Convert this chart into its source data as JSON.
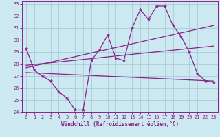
{
  "xlabel": "Windchill (Refroidissement éolien,°C)",
  "xlim": [
    -0.5,
    23.5
  ],
  "ylim": [
    24,
    33.2
  ],
  "yticks": [
    24,
    25,
    26,
    27,
    28,
    29,
    30,
    31,
    32,
    33
  ],
  "xticks": [
    0,
    1,
    2,
    3,
    4,
    5,
    6,
    7,
    8,
    9,
    10,
    11,
    12,
    13,
    14,
    15,
    16,
    17,
    18,
    19,
    20,
    21,
    22,
    23
  ],
  "bg_color": "#cce8f0",
  "grid_color": "#aaccd8",
  "line_color": "#882288",
  "series1_x": [
    0,
    1,
    2,
    3,
    4,
    5,
    6,
    7,
    8,
    9,
    10,
    11,
    12,
    13,
    14,
    15,
    16,
    17,
    18,
    19,
    20,
    21,
    22,
    23
  ],
  "series1_y": [
    29.3,
    27.5,
    27.0,
    26.6,
    25.7,
    25.2,
    24.2,
    24.2,
    28.3,
    29.2,
    30.4,
    28.5,
    28.3,
    31.0,
    32.5,
    31.7,
    32.8,
    32.8,
    31.2,
    30.3,
    29.0,
    27.2,
    26.6,
    26.5
  ],
  "series2_x": [
    0,
    23
  ],
  "series2_y": [
    27.3,
    26.6
  ],
  "series3_x": [
    0,
    23
  ],
  "series3_y": [
    27.7,
    31.2
  ],
  "series4_x": [
    0,
    23
  ],
  "series4_y": [
    27.9,
    29.5
  ],
  "label_fontsize": 5.0,
  "tick_fontsize": 5.0,
  "xlabel_fontsize": 5.5
}
